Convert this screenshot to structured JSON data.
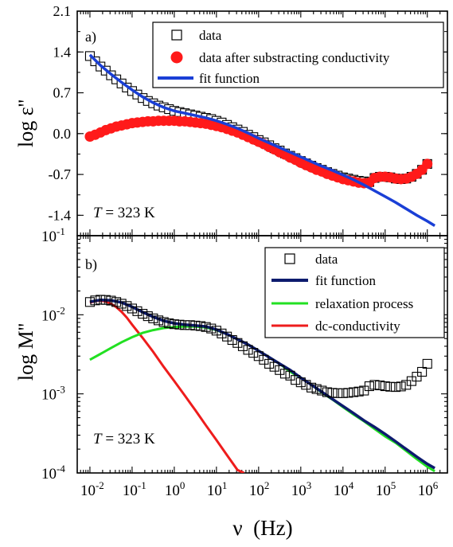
{
  "chart_data": [
    {
      "type": "scatter",
      "panel": "a)",
      "annotation": "T = 323 K",
      "annotation_italic": "T",
      "annotation_rest": " = 323 K",
      "ylabel": "log ε''",
      "x_scale": "log",
      "xlim": [
        0.005,
        3000000
      ],
      "ylim": [
        -1.75,
        2.1
      ],
      "y_ticks": [
        "2.1",
        "1.4",
        "0.7",
        "0.0",
        "-0.7",
        "-1.4"
      ],
      "legend_position": "top-right",
      "colors": {
        "data": "#000000",
        "corrected": "#ff1a1a",
        "fit": "#1a3fd6"
      },
      "series": [
        {
          "name": "data",
          "marker": "open-square",
          "x": [
            0.01,
            0.0133,
            0.0178,
            0.0237,
            0.0316,
            0.0422,
            0.0562,
            0.075,
            0.1,
            0.133,
            0.178,
            0.237,
            0.316,
            0.422,
            0.562,
            0.75,
            1,
            1.33,
            1.78,
            2.37,
            3.16,
            4.22,
            5.62,
            7.5,
            10,
            13.3,
            17.8,
            23.7,
            31.6,
            42.2,
            56.2,
            75,
            100,
            133,
            178,
            237,
            316,
            422,
            562,
            750,
            1000,
            1330,
            1780,
            2370,
            3160,
            4220,
            5620,
            7500,
            10000,
            13300,
            17800,
            23700,
            31600,
            42200,
            56200,
            75000,
            100000,
            133000,
            178000,
            237000,
            316000,
            422000,
            562000,
            750000,
            1000000
          ],
          "y": [
            1.33,
            1.24,
            1.15,
            1.08,
            1.0,
            0.93,
            0.86,
            0.79,
            0.73,
            0.67,
            0.61,
            0.56,
            0.52,
            0.48,
            0.45,
            0.42,
            0.39,
            0.37,
            0.35,
            0.33,
            0.31,
            0.29,
            0.27,
            0.25,
            0.22,
            0.19,
            0.15,
            0.11,
            0.07,
            0.03,
            -0.02,
            -0.06,
            -0.11,
            -0.15,
            -0.2,
            -0.25,
            -0.29,
            -0.34,
            -0.38,
            -0.42,
            -0.47,
            -0.51,
            -0.55,
            -0.59,
            -0.62,
            -0.66,
            -0.69,
            -0.72,
            -0.75,
            -0.77,
            -0.79,
            -0.81,
            -0.82,
            -0.83,
            -0.76,
            -0.74,
            -0.74,
            -0.75,
            -0.77,
            -0.78,
            -0.77,
            -0.74,
            -0.69,
            -0.62,
            -0.52
          ]
        },
        {
          "name": "data after substracting conductivity",
          "marker": "filled-circle",
          "x": [
            0.01,
            0.0133,
            0.0178,
            0.0237,
            0.0316,
            0.0422,
            0.0562,
            0.075,
            0.1,
            0.133,
            0.178,
            0.237,
            0.316,
            0.422,
            0.562,
            0.75,
            1,
            1.33,
            1.78,
            2.37,
            3.16,
            4.22,
            5.62,
            7.5,
            10,
            13.3,
            17.8,
            23.7,
            31.6,
            42.2,
            56.2,
            75,
            100,
            133,
            178,
            237,
            316,
            422,
            562,
            750,
            1000,
            1330,
            1780,
            2370,
            3160,
            4220,
            5620,
            7500,
            10000,
            13300,
            17800,
            23700,
            31600,
            42200,
            56200,
            75000,
            100000,
            133000,
            178000,
            237000,
            316000,
            422000,
            562000,
            750000,
            1000000
          ],
          "y": [
            -0.05,
            -0.02,
            0.02,
            0.06,
            0.09,
            0.12,
            0.14,
            0.16,
            0.18,
            0.19,
            0.2,
            0.21,
            0.21,
            0.22,
            0.22,
            0.22,
            0.22,
            0.21,
            0.21,
            0.2,
            0.19,
            0.18,
            0.17,
            0.15,
            0.13,
            0.11,
            0.08,
            0.05,
            0.02,
            -0.02,
            -0.06,
            -0.1,
            -0.14,
            -0.18,
            -0.23,
            -0.27,
            -0.32,
            -0.36,
            -0.41,
            -0.45,
            -0.5,
            -0.54,
            -0.58,
            -0.62,
            -0.65,
            -0.69,
            -0.72,
            -0.75,
            -0.78,
            -0.8,
            -0.82,
            -0.84,
            -0.85,
            -0.84,
            -0.76,
            -0.74,
            -0.74,
            -0.75,
            -0.77,
            -0.78,
            -0.77,
            -0.74,
            -0.69,
            -0.62,
            -0.52
          ]
        },
        {
          "name": "fit function",
          "line": true,
          "x": [
            0.01,
            0.0178,
            0.0316,
            0.0562,
            0.1,
            0.178,
            0.316,
            0.562,
            1,
            1.78,
            3.16,
            5.62,
            10,
            17.8,
            31.6,
            56.2,
            100,
            178,
            316,
            562,
            1000,
            1780,
            3160,
            5620,
            10000,
            17800,
            31600,
            56200,
            100000,
            178000,
            316000,
            562000,
            1000000,
            1500000
          ],
          "y": [
            1.35,
            1.17,
            1.02,
            0.88,
            0.75,
            0.63,
            0.53,
            0.45,
            0.39,
            0.35,
            0.31,
            0.27,
            0.22,
            0.16,
            0.09,
            0.01,
            -0.08,
            -0.16,
            -0.24,
            -0.32,
            -0.4,
            -0.48,
            -0.56,
            -0.63,
            -0.71,
            -0.79,
            -0.88,
            -0.98,
            -1.08,
            -1.18,
            -1.29,
            -1.4,
            -1.5,
            -1.58
          ]
        }
      ]
    },
    {
      "type": "line",
      "panel": "b)",
      "annotation": "T = 323 K",
      "annotation_italic": "T",
      "annotation_rest": " = 323 K",
      "ylabel": "log M''",
      "xlabel": "ν  (Hz)",
      "x_scale": "log",
      "y_scale": "log",
      "xlim": [
        0.005,
        3000000
      ],
      "ylim": [
        0.0001,
        0.1
      ],
      "x_tick_exponents": [
        "-2",
        "-1",
        "0",
        "1",
        "2",
        "3",
        "4",
        "5",
        "6"
      ],
      "y_tick_exponents": [
        "-1",
        "-2",
        "-3",
        "-4"
      ],
      "tick_base": "10",
      "legend_position": "top-right",
      "colors": {
        "data": "#000000",
        "fit": "#0d1b6e",
        "relaxation": "#22e022",
        "dc": "#ee1c1c"
      },
      "series": [
        {
          "name": "data",
          "marker": "open-square",
          "x": [
            0.01,
            0.0133,
            0.0178,
            0.0237,
            0.0316,
            0.0422,
            0.0562,
            0.075,
            0.1,
            0.133,
            0.178,
            0.237,
            0.316,
            0.422,
            0.562,
            0.75,
            1,
            1.33,
            1.78,
            2.37,
            3.16,
            4.22,
            5.62,
            7.5,
            10,
            13.3,
            17.8,
            23.7,
            31.6,
            42.2,
            56.2,
            75,
            100,
            133,
            178,
            237,
            316,
            422,
            562,
            750,
            1000,
            1330,
            1780,
            2370,
            3160,
            4220,
            5620,
            7500,
            10000,
            13300,
            17800,
            23700,
            31600,
            42200,
            56200,
            75000,
            100000,
            133000,
            178000,
            237000,
            316000,
            422000,
            562000,
            750000,
            1000000
          ],
          "y": [
            0.0145,
            0.0152,
            0.0155,
            0.0154,
            0.0151,
            0.0145,
            0.0138,
            0.0129,
            0.012,
            0.0111,
            0.0103,
            0.0096,
            0.009,
            0.0085,
            0.0081,
            0.0078,
            0.0076,
            0.0075,
            0.0074,
            0.0074,
            0.0073,
            0.0072,
            0.007,
            0.0067,
            0.0063,
            0.0058,
            0.0053,
            0.0048,
            0.0044,
            0.004,
            0.0036,
            0.0033,
            0.003,
            0.0027,
            0.0024,
            0.0022,
            0.002,
            0.0018,
            0.0017,
            0.0015,
            0.0014,
            0.0013,
            0.0012,
            0.00115,
            0.0011,
            0.00105,
            0.00103,
            0.00102,
            0.00102,
            0.00103,
            0.00105,
            0.00107,
            0.0011,
            0.00125,
            0.0013,
            0.00128,
            0.00125,
            0.00123,
            0.00122,
            0.00124,
            0.0013,
            0.00145,
            0.00165,
            0.0019,
            0.0024
          ]
        },
        {
          "name": "fit function",
          "x": [
            0.01,
            0.0178,
            0.0316,
            0.0562,
            0.1,
            0.178,
            0.316,
            0.562,
            1,
            1.78,
            3.16,
            5.62,
            10,
            17.8,
            31.6,
            56.2,
            100,
            178,
            316,
            562,
            1000,
            1780,
            3160,
            5620,
            10000,
            17800,
            31600,
            56200,
            100000,
            178000,
            316000,
            562000,
            1000000,
            1500000
          ],
          "y": [
            0.0146,
            0.0154,
            0.0152,
            0.0143,
            0.0126,
            0.0108,
            0.0094,
            0.0084,
            0.0078,
            0.0075,
            0.0073,
            0.0071,
            0.0065,
            0.0057,
            0.0049,
            0.0042,
            0.0035,
            0.0029,
            0.0024,
            0.002,
            0.0016,
            0.0013,
            0.00106,
            0.00086,
            0.0007,
            0.00057,
            0.00046,
            0.00038,
            0.00031,
            0.00025,
            0.0002,
            0.00016,
            0.00013,
            0.000115
          ]
        },
        {
          "name": "relaxation process",
          "x": [
            0.01,
            0.0178,
            0.0316,
            0.0562,
            0.1,
            0.178,
            0.316,
            0.562,
            1,
            1.78,
            3.16,
            5.62,
            10,
            17.8,
            31.6,
            56.2,
            100,
            178,
            316,
            562,
            1000,
            1780,
            3160,
            5620,
            10000,
            17800,
            31600,
            56200,
            100000,
            178000,
            316000,
            562000,
            1000000,
            1500000
          ],
          "y": [
            0.0027,
            0.0032,
            0.0038,
            0.0045,
            0.0052,
            0.0059,
            0.0064,
            0.0068,
            0.007,
            0.0071,
            0.0071,
            0.0069,
            0.0064,
            0.0057,
            0.0049,
            0.0042,
            0.0035,
            0.0029,
            0.0024,
            0.0019,
            0.0016,
            0.0013,
            0.00104,
            0.00085,
            0.00068,
            0.00055,
            0.00045,
            0.00036,
            0.00029,
            0.00024,
            0.00019,
            0.00015,
            0.00012,
            0.000105
          ]
        },
        {
          "name": "dc-conductivity",
          "x": [
            0.01,
            0.0133,
            0.0178,
            0.0237,
            0.0316,
            0.0422,
            0.0562,
            0.075,
            0.1,
            0.178,
            0.316,
            0.562,
            1,
            1.78,
            3.16,
            5.62,
            10,
            17.8,
            31.6,
            45
          ],
          "y": [
            0.0142,
            0.0149,
            0.0151,
            0.0147,
            0.0138,
            0.0125,
            0.0109,
            0.0092,
            0.0075,
            0.0051,
            0.0034,
            0.0022,
            0.00145,
            0.00095,
            0.00062,
            0.0004,
            0.00026,
            0.000168,
            0.000109,
            0.0001
          ]
        }
      ]
    }
  ]
}
